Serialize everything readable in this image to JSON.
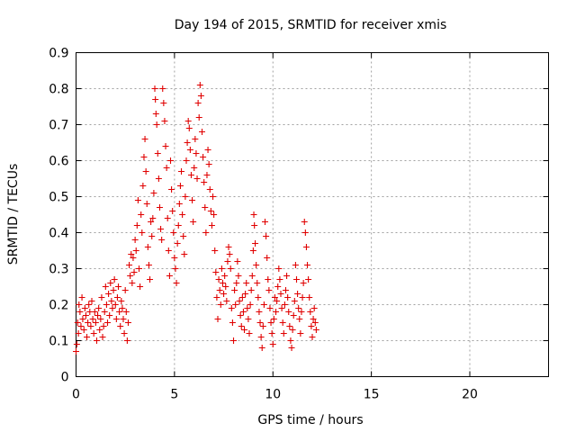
{
  "chart_data": {
    "type": "scatter",
    "title": "Day 194 of 2015, SRMTID for receiver xmis",
    "xlabel": "GPS time / hours",
    "ylabel": "SRMTID / TECUs",
    "xlim": [
      0,
      24
    ],
    "ylim": [
      0,
      0.9
    ],
    "x_ticks": [
      "0",
      "5",
      "10",
      "15",
      "20"
    ],
    "y_ticks": [
      "0",
      "0.1",
      "0.2",
      "0.3",
      "0.4",
      "0.5",
      "0.6",
      "0.7",
      "0.8",
      "0.9"
    ],
    "grid": true,
    "marker": "+",
    "series": [
      {
        "name": "SRMTID",
        "color": "#e00000",
        "points": [
          [
            0.0,
            0.07
          ],
          [
            0.04,
            0.09
          ],
          [
            0.08,
            0.15
          ],
          [
            0.12,
            0.12
          ],
          [
            0.15,
            0.2
          ],
          [
            0.2,
            0.18
          ],
          [
            0.25,
            0.14
          ],
          [
            0.3,
            0.22
          ],
          [
            0.34,
            0.16
          ],
          [
            0.4,
            0.13
          ],
          [
            0.45,
            0.19
          ],
          [
            0.5,
            0.17
          ],
          [
            0.55,
            0.11
          ],
          [
            0.6,
            0.15
          ],
          [
            0.65,
            0.2
          ],
          [
            0.7,
            0.18
          ],
          [
            0.75,
            0.14
          ],
          [
            0.8,
            0.21
          ],
          [
            0.85,
            0.16
          ],
          [
            0.9,
            0.12
          ],
          [
            0.95,
            0.18
          ],
          [
            1.0,
            0.15
          ],
          [
            1.05,
            0.1
          ],
          [
            1.1,
            0.17
          ],
          [
            1.15,
            0.19
          ],
          [
            1.2,
            0.13
          ],
          [
            1.25,
            0.16
          ],
          [
            1.3,
            0.22
          ],
          [
            1.35,
            0.11
          ],
          [
            1.4,
            0.14
          ],
          [
            1.45,
            0.18
          ],
          [
            1.5,
            0.25
          ],
          [
            1.55,
            0.2
          ],
          [
            1.6,
            0.15
          ],
          [
            1.65,
            0.23
          ],
          [
            1.7,
            0.17
          ],
          [
            1.75,
            0.26
          ],
          [
            1.8,
            0.21
          ],
          [
            1.85,
            0.19
          ],
          [
            1.9,
            0.24
          ],
          [
            1.95,
            0.27
          ],
          [
            2.0,
            0.2
          ],
          [
            2.05,
            0.16
          ],
          [
            2.1,
            0.22
          ],
          [
            2.15,
            0.25
          ],
          [
            2.2,
            0.18
          ],
          [
            2.25,
            0.14
          ],
          [
            2.3,
            0.21
          ],
          [
            2.35,
            0.19
          ],
          [
            2.4,
            0.16
          ],
          [
            2.45,
            0.12
          ],
          [
            2.5,
            0.24
          ],
          [
            2.55,
            0.18
          ],
          [
            2.6,
            0.1
          ],
          [
            2.65,
            0.15
          ],
          [
            2.7,
            0.31
          ],
          [
            2.75,
            0.28
          ],
          [
            2.8,
            0.34
          ],
          [
            2.85,
            0.26
          ],
          [
            2.9,
            0.33
          ],
          [
            2.95,
            0.29
          ],
          [
            3.0,
            0.38
          ],
          [
            3.05,
            0.35
          ],
          [
            3.1,
            0.42
          ],
          [
            3.15,
            0.49
          ],
          [
            3.2,
            0.3
          ],
          [
            3.25,
            0.25
          ],
          [
            3.3,
            0.45
          ],
          [
            3.35,
            0.4
          ],
          [
            3.4,
            0.53
          ],
          [
            3.45,
            0.61
          ],
          [
            3.5,
            0.66
          ],
          [
            3.55,
            0.57
          ],
          [
            3.6,
            0.48
          ],
          [
            3.65,
            0.36
          ],
          [
            3.7,
            0.31
          ],
          [
            3.75,
            0.27
          ],
          [
            3.8,
            0.43
          ],
          [
            3.85,
            0.39
          ],
          [
            3.9,
            0.44
          ],
          [
            3.95,
            0.51
          ],
          [
            4.0,
            0.8
          ],
          [
            4.03,
            0.77
          ],
          [
            4.06,
            0.73
          ],
          [
            4.1,
            0.7
          ],
          [
            4.15,
            0.62
          ],
          [
            4.2,
            0.55
          ],
          [
            4.25,
            0.47
          ],
          [
            4.3,
            0.41
          ],
          [
            4.35,
            0.38
          ],
          [
            4.4,
            0.8
          ],
          [
            4.45,
            0.76
          ],
          [
            4.5,
            0.71
          ],
          [
            4.55,
            0.64
          ],
          [
            4.6,
            0.58
          ],
          [
            4.65,
            0.44
          ],
          [
            4.7,
            0.35
          ],
          [
            4.75,
            0.28
          ],
          [
            4.8,
            0.6
          ],
          [
            4.85,
            0.52
          ],
          [
            4.9,
            0.46
          ],
          [
            4.95,
            0.4
          ],
          [
            5.0,
            0.33
          ],
          [
            5.05,
            0.3
          ],
          [
            5.1,
            0.26
          ],
          [
            5.15,
            0.37
          ],
          [
            5.2,
            0.42
          ],
          [
            5.25,
            0.48
          ],
          [
            5.3,
            0.53
          ],
          [
            5.35,
            0.57
          ],
          [
            5.4,
            0.45
          ],
          [
            5.45,
            0.39
          ],
          [
            5.5,
            0.34
          ],
          [
            5.55,
            0.5
          ],
          [
            5.6,
            0.6
          ],
          [
            5.65,
            0.65
          ],
          [
            5.7,
            0.71
          ],
          [
            5.75,
            0.69
          ],
          [
            5.8,
            0.63
          ],
          [
            5.85,
            0.56
          ],
          [
            5.9,
            0.49
          ],
          [
            5.95,
            0.43
          ],
          [
            6.0,
            0.58
          ],
          [
            6.05,
            0.66
          ],
          [
            6.1,
            0.62
          ],
          [
            6.15,
            0.55
          ],
          [
            6.2,
            0.76
          ],
          [
            6.25,
            0.72
          ],
          [
            6.3,
            0.81
          ],
          [
            6.35,
            0.78
          ],
          [
            6.4,
            0.68
          ],
          [
            6.45,
            0.61
          ],
          [
            6.5,
            0.54
          ],
          [
            6.55,
            0.47
          ],
          [
            6.6,
            0.4
          ],
          [
            6.65,
            0.56
          ],
          [
            6.7,
            0.63
          ],
          [
            6.75,
            0.59
          ],
          [
            6.8,
            0.52
          ],
          [
            6.85,
            0.46
          ],
          [
            6.9,
            0.42
          ],
          [
            6.95,
            0.5
          ],
          [
            7.0,
            0.45
          ],
          [
            7.05,
            0.35
          ],
          [
            7.1,
            0.29
          ],
          [
            7.15,
            0.22
          ],
          [
            7.2,
            0.16
          ],
          [
            7.25,
            0.27
          ],
          [
            7.3,
            0.24
          ],
          [
            7.35,
            0.2
          ],
          [
            7.4,
            0.3
          ],
          [
            7.45,
            0.26
          ],
          [
            7.5,
            0.23
          ],
          [
            7.55,
            0.28
          ],
          [
            7.6,
            0.25
          ],
          [
            7.65,
            0.21
          ],
          [
            7.7,
            0.32
          ],
          [
            7.75,
            0.36
          ],
          [
            7.8,
            0.34
          ],
          [
            7.85,
            0.3
          ],
          [
            7.9,
            0.19
          ],
          [
            7.95,
            0.15
          ],
          [
            8.0,
            0.1
          ],
          [
            8.05,
            0.24
          ],
          [
            8.1,
            0.2
          ],
          [
            8.15,
            0.26
          ],
          [
            8.2,
            0.32
          ],
          [
            8.25,
            0.28
          ],
          [
            8.3,
            0.21
          ],
          [
            8.35,
            0.17
          ],
          [
            8.4,
            0.14
          ],
          [
            8.45,
            0.22
          ],
          [
            8.5,
            0.18
          ],
          [
            8.55,
            0.13
          ],
          [
            8.6,
            0.23
          ],
          [
            8.65,
            0.26
          ],
          [
            8.7,
            0.19
          ],
          [
            8.75,
            0.16
          ],
          [
            8.8,
            0.12
          ],
          [
            8.85,
            0.2
          ],
          [
            8.9,
            0.24
          ],
          [
            8.95,
            0.28
          ],
          [
            9.0,
            0.35
          ],
          [
            9.03,
            0.45
          ],
          [
            9.06,
            0.42
          ],
          [
            9.1,
            0.37
          ],
          [
            9.15,
            0.31
          ],
          [
            9.2,
            0.26
          ],
          [
            9.25,
            0.22
          ],
          [
            9.3,
            0.18
          ],
          [
            9.35,
            0.15
          ],
          [
            9.4,
            0.11
          ],
          [
            9.45,
            0.08
          ],
          [
            9.5,
            0.14
          ],
          [
            9.55,
            0.2
          ],
          [
            9.6,
            0.43
          ],
          [
            9.65,
            0.39
          ],
          [
            9.7,
            0.33
          ],
          [
            9.75,
            0.27
          ],
          [
            9.8,
            0.24
          ],
          [
            9.85,
            0.19
          ],
          [
            9.9,
            0.15
          ],
          [
            9.95,
            0.12
          ],
          [
            10.0,
            0.09
          ],
          [
            10.05,
            0.16
          ],
          [
            10.1,
            0.22
          ],
          [
            10.15,
            0.18
          ],
          [
            10.2,
            0.21
          ],
          [
            10.25,
            0.25
          ],
          [
            10.3,
            0.3
          ],
          [
            10.35,
            0.27
          ],
          [
            10.4,
            0.23
          ],
          [
            10.45,
            0.19
          ],
          [
            10.5,
            0.15
          ],
          [
            10.55,
            0.12
          ],
          [
            10.6,
            0.2
          ],
          [
            10.65,
            0.24
          ],
          [
            10.7,
            0.28
          ],
          [
            10.75,
            0.22
          ],
          [
            10.8,
            0.18
          ],
          [
            10.85,
            0.14
          ],
          [
            10.9,
            0.1
          ],
          [
            10.95,
            0.08
          ],
          [
            11.0,
            0.13
          ],
          [
            11.05,
            0.17
          ],
          [
            11.1,
            0.21
          ],
          [
            11.15,
            0.31
          ],
          [
            11.2,
            0.27
          ],
          [
            11.25,
            0.23
          ],
          [
            11.3,
            0.19
          ],
          [
            11.35,
            0.16
          ],
          [
            11.4,
            0.12
          ],
          [
            11.45,
            0.18
          ],
          [
            11.5,
            0.22
          ],
          [
            11.55,
            0.26
          ],
          [
            11.6,
            0.43
          ],
          [
            11.65,
            0.4
          ],
          [
            11.7,
            0.36
          ],
          [
            11.75,
            0.31
          ],
          [
            11.8,
            0.27
          ],
          [
            11.85,
            0.22
          ],
          [
            11.9,
            0.18
          ],
          [
            11.95,
            0.14
          ],
          [
            12.0,
            0.11
          ],
          [
            12.05,
            0.16
          ],
          [
            12.1,
            0.19
          ],
          [
            12.15,
            0.15
          ],
          [
            12.2,
            0.13
          ]
        ]
      }
    ]
  }
}
